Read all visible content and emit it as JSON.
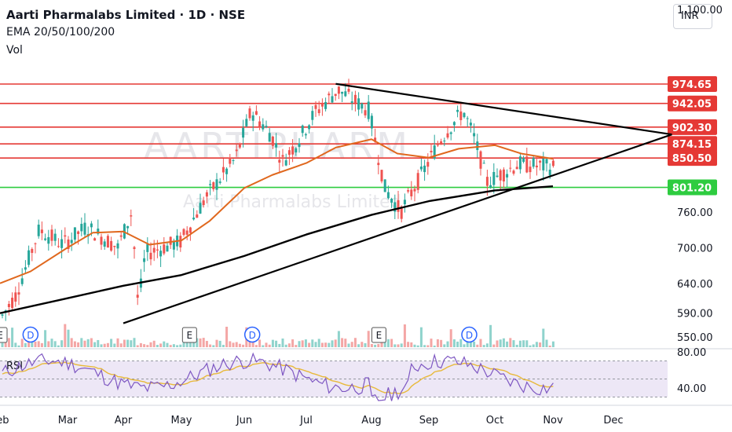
{
  "header": {
    "title": "Aarti Pharmalabs Limited · 1D · NSE",
    "indicators": "EMA 20/50/100/200",
    "volume_label": "Vol",
    "currency_button": "INR"
  },
  "watermark": {
    "big": "AARTIPHARM",
    "small": "Aarti Pharmalabs Limited"
  },
  "colors": {
    "resistance": "#e53935",
    "support": "#2ecc40",
    "ema_fast": "#e0681e",
    "ema_slow": "#000000",
    "candle_up": "#26a69a",
    "candle_down": "#ef5350",
    "rsi_line": "#7e57c2",
    "rsi_ma": "#e8b93a",
    "rsi_band": "#ede7f6"
  },
  "chart_data": {
    "type": "candlestick",
    "price_axis_ticks": [
      1100.0,
      760.0,
      700.0,
      640.0,
      590.0,
      550.0
    ],
    "price_axis_labels": [
      "1,100.00",
      "760.00",
      "700.00",
      "640.00",
      "590.00",
      "550.00"
    ],
    "x_axis_labels": [
      "Feb",
      "Mar",
      "Apr",
      "May",
      "Jun",
      "Jul",
      "Aug",
      "Sep",
      "Oct",
      "Nov",
      "Dec"
    ],
    "horizontal_levels": [
      {
        "value": 974.65,
        "label": "974.65",
        "kind": "resistance"
      },
      {
        "value": 942.05,
        "label": "942.05",
        "kind": "resistance"
      },
      {
        "value": 902.3,
        "label": "902.30",
        "kind": "resistance"
      },
      {
        "value": 874.15,
        "label": "874.15",
        "kind": "resistance"
      },
      {
        "value": 850.5,
        "label": "850.50",
        "kind": "resistance"
      },
      {
        "value": 801.2,
        "label": "801.20",
        "kind": "support"
      }
    ],
    "trendlines": [
      {
        "name": "upper",
        "from": {
          "date": "Jul 15",
          "price": 975
        },
        "to": {
          "date": "Dec 31",
          "price": 890
        }
      },
      {
        "name": "lower",
        "from": {
          "date": "Apr 1",
          "price": 573
        },
        "to": {
          "date": "Dec 31",
          "price": 890
        }
      }
    ],
    "ema_fast": [
      {
        "date": "Feb 1",
        "price": 640
      },
      {
        "date": "Feb 15",
        "price": 660
      },
      {
        "date": "Mar 1",
        "price": 700
      },
      {
        "date": "Mar 15",
        "price": 725
      },
      {
        "date": "Apr 1",
        "price": 727
      },
      {
        "date": "Apr 15",
        "price": 705
      },
      {
        "date": "May 1",
        "price": 712
      },
      {
        "date": "May 15",
        "price": 745
      },
      {
        "date": "Jun 1",
        "price": 800
      },
      {
        "date": "Jun 15",
        "price": 822
      },
      {
        "date": "Jul 1",
        "price": 842
      },
      {
        "date": "Jul 15",
        "price": 868
      },
      {
        "date": "Aug 1",
        "price": 882
      },
      {
        "date": "Aug 15",
        "price": 858
      },
      {
        "date": "Sep 1",
        "price": 851
      },
      {
        "date": "Sep 15",
        "price": 866
      },
      {
        "date": "Oct 1",
        "price": 872
      },
      {
        "date": "Oct 15",
        "price": 858
      },
      {
        "date": "Nov 1",
        "price": 849
      }
    ],
    "ema_slow": [
      {
        "date": "Feb 1",
        "price": 590
      },
      {
        "date": "Mar 1",
        "price": 615
      },
      {
        "date": "Apr 1",
        "price": 636
      },
      {
        "date": "May 1",
        "price": 654
      },
      {
        "date": "Jun 1",
        "price": 686
      },
      {
        "date": "Jul 1",
        "price": 722
      },
      {
        "date": "Aug 1",
        "price": 755
      },
      {
        "date": "Sep 1",
        "price": 778
      },
      {
        "date": "Oct 1",
        "price": 796
      },
      {
        "date": "Nov 1",
        "price": 803
      }
    ],
    "volume_markers": [
      {
        "date": "Feb 1",
        "label": "E"
      },
      {
        "date": "Feb 15",
        "label": "D"
      },
      {
        "date": "May 5",
        "label": "E"
      },
      {
        "date": "Jun 5",
        "label": "D"
      },
      {
        "date": "Aug 5",
        "label": "E"
      },
      {
        "date": "Sep 20",
        "label": "D"
      }
    ],
    "rsi": {
      "label": "RSI",
      "axis_ticks": [
        80.0,
        40.0
      ],
      "axis_labels": [
        "80.00",
        "40.00"
      ],
      "band_upper": 70,
      "band_lower": 30
    }
  }
}
